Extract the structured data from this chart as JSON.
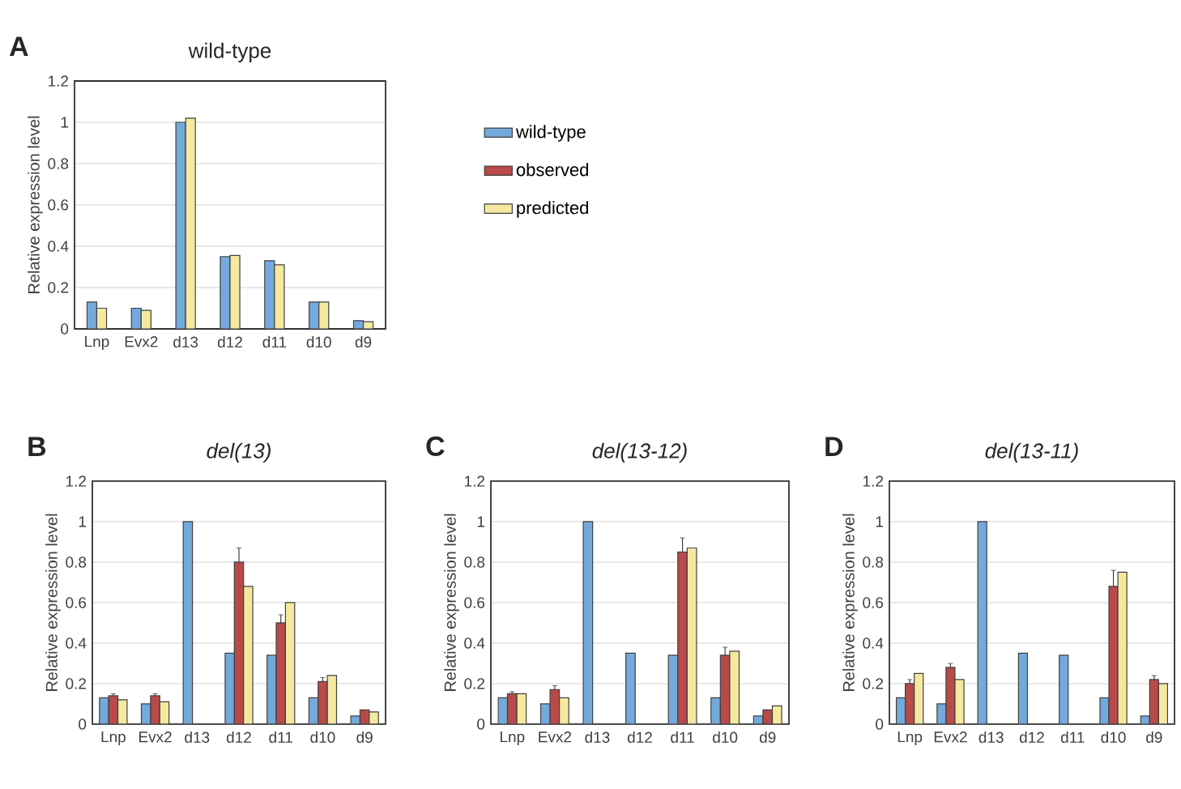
{
  "chart_data": [
    {
      "type": "bar",
      "title": "wild-type",
      "ylabel": "Relative expression level",
      "categories": [
        "Lnp",
        "Evx2",
        "d13",
        "d12",
        "d11",
        "d10",
        "d9"
      ],
      "ylim": [
        0,
        1.2
      ],
      "yticks": [
        0,
        0.2,
        0.4,
        0.6,
        0.8,
        1,
        1.2
      ],
      "grid": "y",
      "legend": "right",
      "annotations": [
        "A"
      ],
      "series": [
        {
          "name": "wild-type",
          "color": "#74a9dc",
          "values": [
            0.13,
            0.1,
            1.0,
            0.35,
            0.33,
            0.13,
            0.04
          ]
        },
        {
          "name": "observed",
          "color": "#b84a4a",
          "values": [
            null,
            null,
            null,
            null,
            null,
            null,
            null
          ]
        },
        {
          "name": "predicted",
          "color": "#f5e9a0",
          "values": [
            0.1,
            0.09,
            1.02,
            0.355,
            0.31,
            0.13,
            0.035
          ]
        }
      ]
    },
    {
      "type": "bar",
      "title": "del(13)",
      "ylabel": "Relative expression level",
      "categories": [
        "Lnp",
        "Evx2",
        "d13",
        "d12",
        "d11",
        "d10",
        "d9"
      ],
      "ylim": [
        0,
        1.2
      ],
      "yticks": [
        0,
        0.2,
        0.4,
        0.6,
        0.8,
        1,
        1.2
      ],
      "grid": "y",
      "annotations": [
        "B"
      ],
      "series": [
        {
          "color": "#74a9dc",
          "values": [
            0.13,
            0.1,
            1.0,
            0.35,
            0.34,
            0.13,
            0.04
          ]
        },
        {
          "color": "#b84a4a",
          "values": [
            0.14,
            0.14,
            null,
            0.8,
            0.5,
            0.21,
            0.07
          ],
          "errors": [
            0.01,
            0.01,
            null,
            0.07,
            0.04,
            0.02,
            null
          ]
        },
        {
          "color": "#f5e9a0",
          "values": [
            0.12,
            0.11,
            null,
            0.68,
            0.6,
            0.24,
            0.06
          ]
        }
      ]
    },
    {
      "type": "bar",
      "title": "del(13-12)",
      "ylabel": "Relative expression level",
      "categories": [
        "Lnp",
        "Evx2",
        "d13",
        "d12",
        "d11",
        "d10",
        "d9"
      ],
      "ylim": [
        0,
        1.2
      ],
      "yticks": [
        0,
        0.2,
        0.4,
        0.6,
        0.8,
        1,
        1.2
      ],
      "grid": "y",
      "annotations": [
        "C"
      ],
      "series": [
        {
          "color": "#74a9dc",
          "values": [
            0.13,
            0.1,
            1.0,
            0.35,
            0.34,
            0.13,
            0.04
          ]
        },
        {
          "color": "#b84a4a",
          "values": [
            0.15,
            0.17,
            null,
            null,
            0.85,
            0.34,
            0.07
          ],
          "errors": [
            0.01,
            0.02,
            null,
            null,
            0.07,
            0.04,
            null
          ]
        },
        {
          "color": "#f5e9a0",
          "values": [
            0.15,
            0.13,
            null,
            null,
            0.87,
            0.36,
            0.09
          ]
        }
      ]
    },
    {
      "type": "bar",
      "title": "del(13-11)",
      "ylabel": "Relative expression level",
      "categories": [
        "Lnp",
        "Evx2",
        "d13",
        "d12",
        "d11",
        "d10",
        "d9"
      ],
      "ylim": [
        0,
        1.2
      ],
      "yticks": [
        0,
        0.2,
        0.4,
        0.6,
        0.8,
        1,
        1.2
      ],
      "grid": "y",
      "annotations": [
        "D"
      ],
      "series": [
        {
          "color": "#74a9dc",
          "values": [
            0.13,
            0.1,
            1.0,
            0.35,
            0.34,
            0.13,
            0.04
          ]
        },
        {
          "color": "#b84a4a",
          "values": [
            0.2,
            0.28,
            null,
            null,
            null,
            0.68,
            0.22
          ],
          "errors": [
            0.02,
            0.02,
            null,
            null,
            null,
            0.08,
            0.02
          ]
        },
        {
          "color": "#f5e9a0",
          "values": [
            0.25,
            0.22,
            null,
            null,
            null,
            0.75,
            0.2
          ]
        }
      ]
    }
  ]
}
